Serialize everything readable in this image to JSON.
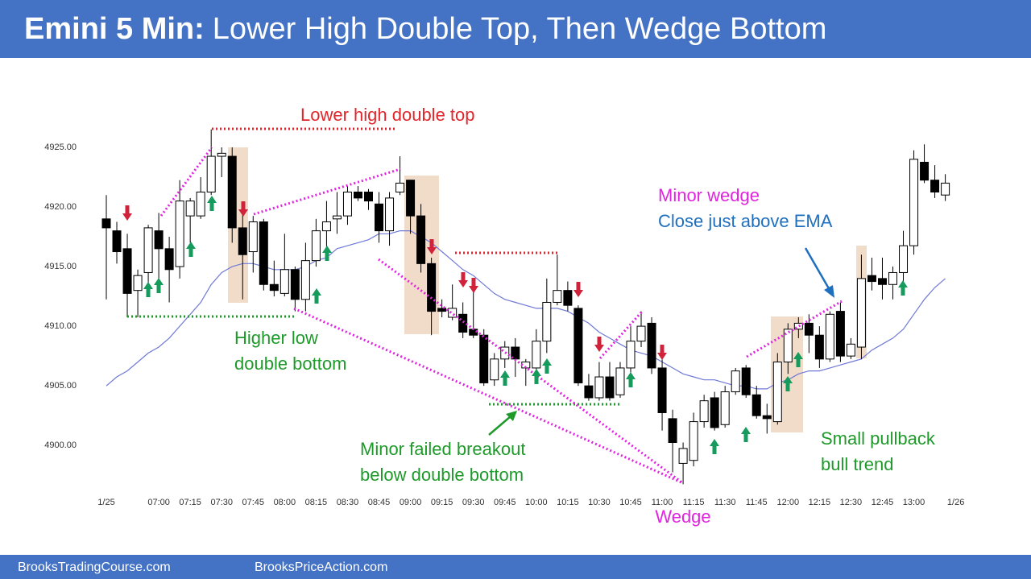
{
  "chart_data": {
    "type": "candlestick",
    "title_lead": "Emini 5 Min:",
    "title": "Lower High Double Top, Then Wedge Bottom",
    "categories": [
      "1/25",
      null,
      null,
      null,
      null,
      "07:00",
      null,
      null,
      "07:15",
      null,
      null,
      "07:30",
      null,
      null,
      "07:45",
      null,
      null,
      "08:00",
      null,
      null,
      "08:15",
      null,
      null,
      "08:30",
      null,
      null,
      "08:45",
      null,
      null,
      "09:00",
      null,
      null,
      "09:15",
      null,
      null,
      "09:30",
      null,
      null,
      "09:45",
      null,
      null,
      "10:00",
      null,
      null,
      "10:15",
      null,
      null,
      "10:30",
      null,
      null,
      "10:45",
      null,
      null,
      "11:00",
      null,
      null,
      "11:15",
      null,
      null,
      "11:30",
      null,
      null,
      "11:45",
      null,
      null,
      "12:00",
      null,
      null,
      "12:15",
      null,
      null,
      "12:30",
      null,
      null,
      "12:45",
      null,
      null,
      "13:00",
      null,
      null,
      null,
      "1/26"
    ],
    "open": [
      4919,
      4918,
      4916.5,
      4913,
      4914.5,
      4918,
      4916.5,
      4915,
      4919.25,
      4919.25,
      4921.25,
      4924.25,
      4924.25,
      4918.25,
      4916.25,
      4918.75,
      4913.5,
      4912.75,
      4914.75,
      4912.25,
      4915.5,
      4918,
      4919,
      4919.25,
      4921.25,
      4921.25,
      4920.25,
      4918,
      4921.25,
      4922.25,
      4919.25,
      4915.25,
      4911.5,
      4910.75,
      4911,
      4909.75,
      4909.25,
      4905.5,
      4907.25,
      4908.25,
      4906.5,
      4906.5,
      4908.75,
      4912,
      4913,
      4911.5,
      4905,
      4904,
      4905.75,
      4904.25,
      4906.5,
      4908.75,
      4910.25,
      4906.5,
      4902.25,
      4898.5,
      4898.75,
      4902,
      4904,
      4901.75,
      4904.5,
      4906.5,
      4904.25,
      4902.5,
      4902,
      4907,
      4909.75,
      4910.25,
      4909.25,
      4907.25,
      4911.25,
      4907.5,
      4908.25,
      4914.25,
      4914,
      4913.5,
      4914.5,
      4916.75,
      4923.75,
      4922.25,
      4921,
      null
    ],
    "high": [
      4921,
      4918.75,
      4917.75,
      4914.75,
      4918.5,
      4919.5,
      4917.5,
      4922.25,
      4920.75,
      4922.5,
      4926.5,
      4925,
      4925,
      4920.25,
      4919.25,
      4919,
      4915.5,
      4917.75,
      4915,
      4917,
      4919,
      4920.5,
      4921.25,
      4921.75,
      4921.75,
      4921.5,
      4921.25,
      4921.25,
      4924.25,
      4922.25,
      4920.25,
      4915.75,
      4912.25,
      4913.5,
      4912,
      4913,
      4909.75,
      4907.75,
      4908.75,
      4909,
      4907.25,
      4909.75,
      4914,
      4916,
      4913.75,
      4911.75,
      4906,
      4907,
      4907,
      4907,
      4910,
      4911.25,
      4910.75,
      4907.25,
      4903,
      4900.25,
      4902.75,
      4904.25,
      4904.5,
      4905,
      4906.5,
      4906.75,
      4905,
      4903.5,
      4907.75,
      4910.25,
      4910.75,
      4911,
      4910,
      4911.25,
      4912,
      4909,
      4916,
      4915.75,
      4915.75,
      4915,
      4918,
      4924.75,
      4925.25,
      4923.5,
      4922.75,
      null
    ],
    "low": [
      4912.25,
      4915.25,
      4910.75,
      4910.75,
      4913.5,
      4914,
      4912,
      4914,
      4917,
      4919,
      4921,
      4922.5,
      4917,
      4912.25,
      4914.5,
      4913,
      4912.5,
      4912.5,
      4911.25,
      4911.25,
      4915,
      4916.5,
      4917.75,
      4918.5,
      4920.5,
      4919.75,
      4917,
      4916.75,
      4921,
      4917.75,
      4914.5,
      4909.25,
      4910.75,
      4910.5,
      4909,
      4909,
      4905,
      4905,
      4906.5,
      4905.75,
      4905,
      4906,
      4907.75,
      4911.75,
      4911.25,
      4905,
      4903.75,
      4903.75,
      4903.75,
      4904,
      4905.5,
      4908.25,
      4906,
      4901.25,
      4897.75,
      4896.75,
      4898.25,
      4901.5,
      4901.25,
      4901.5,
      4904.25,
      4904,
      4902.25,
      4901,
      4901.75,
      4906,
      4909,
      4907.75,
      4906.5,
      4907,
      4907,
      4907.25,
      4907.25,
      4913,
      4912.25,
      4912.25,
      4913,
      4916,
      4922,
      4920.75,
      4920.5,
      null
    ],
    "close": [
      4918.25,
      4916.25,
      4912.75,
      4914.25,
      4918.25,
      4916.5,
      4914.75,
      4920.5,
      4920.5,
      4921.25,
      4924.25,
      4924.5,
      4918.25,
      4916,
      4918.75,
      4913.5,
      4913,
      4914.75,
      4912.25,
      4915.5,
      4918,
      4918.75,
      4919.25,
      4921.25,
      4920.75,
      4920.5,
      4918,
      4920.75,
      4922,
      4919.25,
      4915.25,
      4911.25,
      4911.25,
      4911.5,
      4909.5,
      4909.25,
      4905.25,
      4907.25,
      4908.25,
      4907.25,
      4907,
      4908.75,
      4912,
      4913,
      4911.75,
      4905.25,
      4904,
      4905.75,
      4904,
      4906.5,
      4908.75,
      4910,
      4906.5,
      4902.75,
      4900.25,
      4899.75,
      4902,
      4903.75,
      4901.5,
      4904.5,
      4906.25,
      4904.25,
      4902.5,
      4902.25,
      4907,
      4909.75,
      4910.25,
      4909.25,
      4907.25,
      4911,
      4907.5,
      4908.5,
      4914,
      4913.75,
      4913.5,
      4914.5,
      4916.75,
      4924,
      4922.25,
      4921.25,
      4922,
      null
    ],
    "up_color": "#ffffff",
    "down_color": "#000000",
    "ema": {
      "color": "#6f79d6",
      "values": [
        4905,
        4905.75,
        4906.25,
        4907,
        4907.75,
        4908.25,
        4909,
        4910,
        4911,
        4912,
        4913.5,
        4914.5,
        4915,
        4915.25,
        4915.25,
        4915,
        4914.75,
        4914.75,
        4914.75,
        4915,
        4915.5,
        4915.75,
        4916.5,
        4916.75,
        4917,
        4917.25,
        4917.75,
        4917.75,
        4918,
        4918,
        4917.5,
        4917,
        4916.25,
        4915.5,
        4914.75,
        4914.25,
        4913.5,
        4912.75,
        4912.25,
        4912,
        4911.75,
        4911.5,
        4911.5,
        4911.5,
        4911.25,
        4910.75,
        4910.25,
        4909.5,
        4909,
        4908.5,
        4908,
        4907.75,
        4907.5,
        4907,
        4906.5,
        4906,
        4905.75,
        4905.5,
        4905.5,
        4905.25,
        4905,
        4905,
        4904.75,
        4904.75,
        4905.25,
        4905.5,
        4906,
        4906.25,
        4906.25,
        4906.5,
        4906.75,
        4907,
        4907.25,
        4908,
        4908.5,
        4909,
        4909.75,
        4911,
        4912.25,
        4913.25,
        4914,
        null
      ]
    },
    "ylim": [
      4896.3,
      4927.9
    ],
    "yticks": [
      {
        "value": 4900,
        "label": "4900.00"
      },
      {
        "value": 4905,
        "label": "4905.00"
      },
      {
        "value": 4910,
        "label": "4910.00"
      },
      {
        "value": 4915,
        "label": "4915.00"
      },
      {
        "value": 4920,
        "label": "4920.00"
      },
      {
        "value": 4925,
        "label": "4925.00"
      }
    ],
    "annotations": [
      {
        "lines": [
          "Lower high double top"
        ],
        "color": "#e0262b"
      },
      {
        "lines": [
          "Higher low",
          "double bottom"
        ],
        "color": "#1e9a2a"
      },
      {
        "lines": [
          "Minor failed breakout",
          "below double bottom"
        ],
        "color": "#1e9a2a"
      },
      {
        "lines": [
          "Wedge"
        ],
        "color": "#e024e0"
      },
      {
        "lines": [
          "Minor wedge"
        ],
        "color": "#e024e0"
      },
      {
        "lines": [
          "Close just above EMA"
        ],
        "color": "#1f6fbf"
      },
      {
        "lines": [
          "Small pullback",
          "bull trend"
        ],
        "color": "#1e9a2a"
      }
    ]
  },
  "footer": [
    "BrooksTradingCourse.com",
    "BrooksPriceAction.com"
  ]
}
